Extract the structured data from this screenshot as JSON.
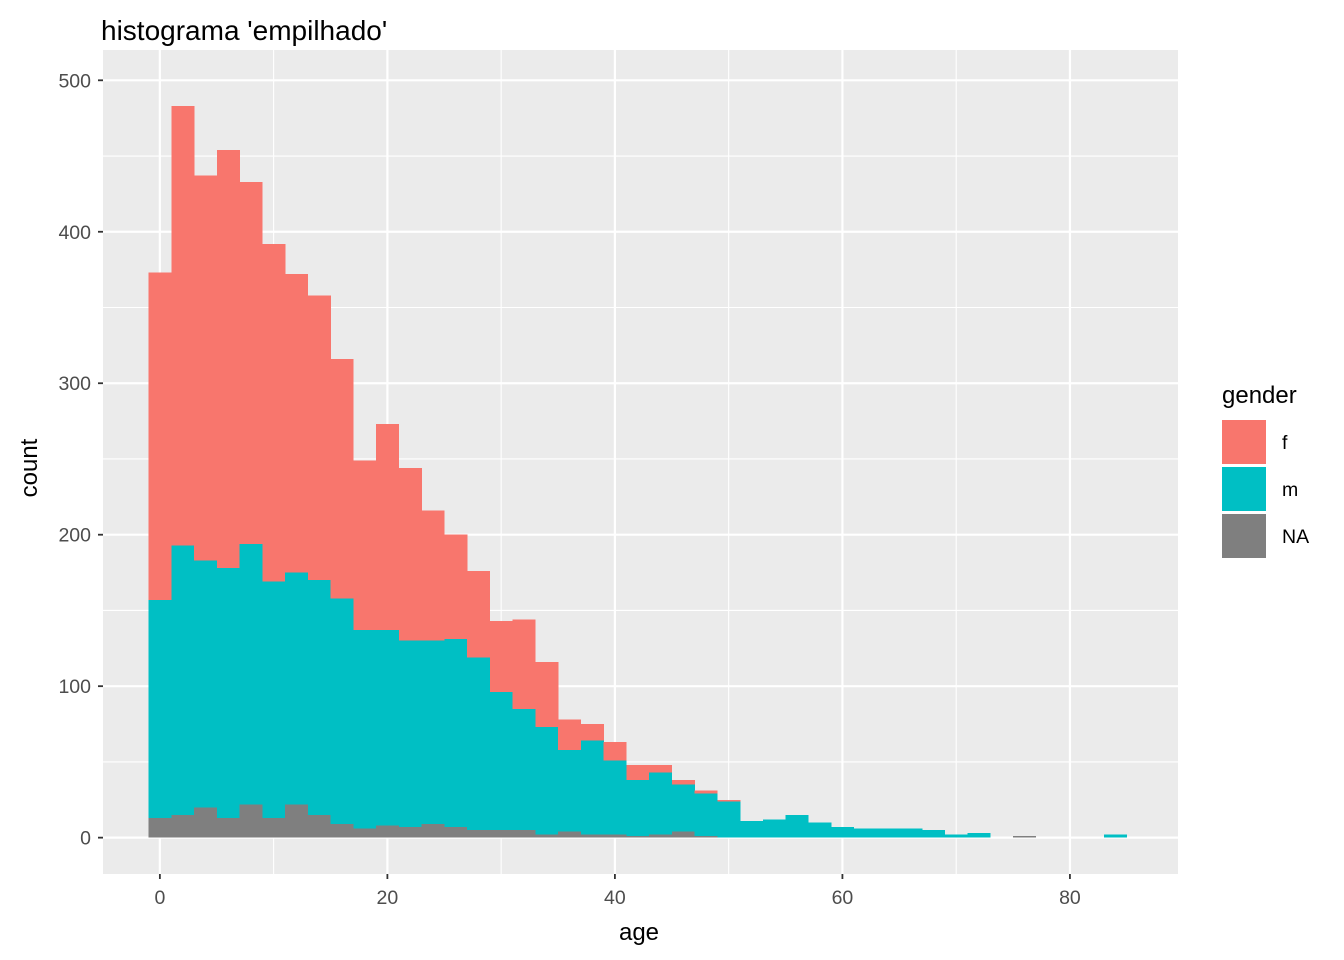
{
  "chart_data": {
    "type": "bar",
    "stacked": true,
    "title": "histograma 'empilhado'",
    "xlabel": "age",
    "ylabel": "count",
    "xlim": [
      -5,
      89.5
    ],
    "ylim": [
      -24,
      520
    ],
    "x_ticks": [
      0,
      20,
      40,
      60,
      80
    ],
    "y_ticks": [
      0,
      100,
      200,
      300,
      400,
      500
    ],
    "grid": true,
    "legend": {
      "title": "gender",
      "position": "right"
    },
    "bin_width": 2,
    "bin_starts": [
      -1,
      1,
      3,
      5,
      7,
      9,
      11,
      13,
      15,
      17,
      19,
      21,
      23,
      25,
      27,
      29,
      31,
      33,
      35,
      37,
      39,
      41,
      43,
      45,
      47,
      49,
      51,
      53,
      55,
      57,
      59,
      61,
      63,
      65,
      67,
      69,
      71,
      73,
      75,
      77,
      79,
      81,
      83
    ],
    "series": [
      {
        "name": "NA",
        "color": "#7f7f7f",
        "values": [
          13,
          15,
          20,
          13,
          22,
          13,
          22,
          15,
          9,
          6,
          8,
          7,
          9,
          7,
          5,
          5,
          5,
          2,
          4,
          2,
          2,
          1,
          2,
          4,
          1,
          0,
          0,
          0,
          0,
          0,
          0,
          0,
          0,
          0,
          0,
          0,
          0,
          0,
          1,
          0,
          0,
          0,
          0
        ]
      },
      {
        "name": "m",
        "color": "#00bfc4",
        "values": [
          144,
          178,
          163,
          165,
          172,
          156,
          153,
          155,
          149,
          131,
          129,
          123,
          121,
          124,
          114,
          91,
          80,
          71,
          54,
          62,
          49,
          37,
          41,
          31,
          28,
          24,
          11,
          12,
          15,
          10,
          7,
          6,
          6,
          6,
          5,
          2,
          3,
          0,
          0,
          0,
          0,
          0,
          2
        ]
      },
      {
        "name": "f",
        "color": "#f8766d",
        "values": [
          216,
          290,
          254,
          276,
          239,
          223,
          197,
          188,
          158,
          112,
          136,
          114,
          86,
          69,
          57,
          47,
          59,
          43,
          20,
          11,
          12,
          10,
          5,
          3,
          2,
          1,
          0,
          0,
          0,
          0,
          0,
          0,
          0,
          0,
          0,
          0,
          0,
          0,
          0,
          0,
          0,
          0,
          0
        ]
      }
    ]
  },
  "legend_keys": {
    "f": "f",
    "m": "m",
    "na": "NA"
  }
}
